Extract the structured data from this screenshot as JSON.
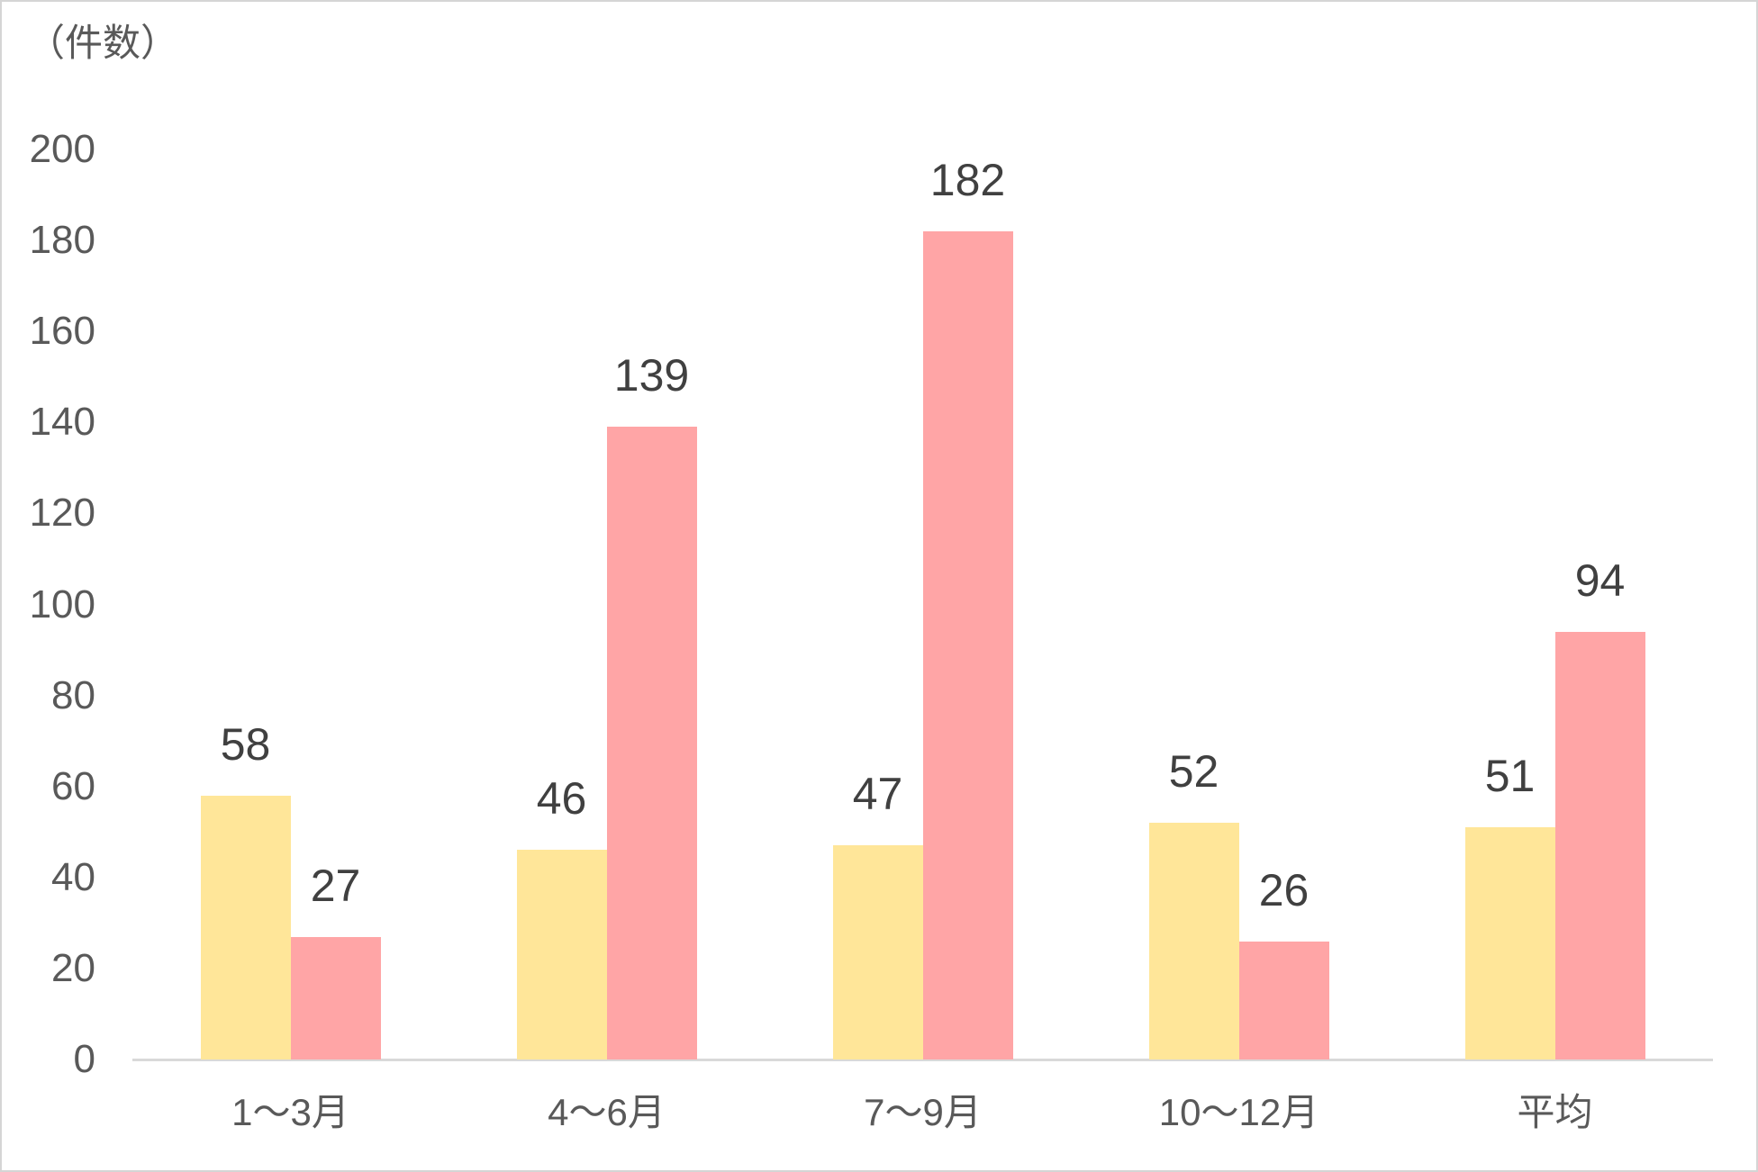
{
  "unit_label": "（件数）",
  "colors": {
    "series1": "#FFE699",
    "series2": "#FFA5A6",
    "axis_line": "#D9D9D9",
    "tick_text": "#595959",
    "data_label_text": "#404040",
    "border": "#D5D5D5",
    "background": "#FFFFFF"
  },
  "chart_data": {
    "type": "bar",
    "title": "",
    "ylabel": "（件数）",
    "xlabel": "",
    "categories": [
      "1〜3月",
      "4〜6月",
      "7〜9月",
      "10〜12月",
      "平均"
    ],
    "series": [
      {
        "id": "series1",
        "color": "#FFE699",
        "values": [
          58,
          46,
          47,
          52,
          51
        ]
      },
      {
        "id": "series2",
        "color": "#FFA5A6",
        "values": [
          27,
          139,
          182,
          26,
          94
        ]
      }
    ],
    "data_labels": [
      [
        "58",
        "46",
        "47",
        "52",
        "51"
      ],
      [
        "27",
        "139",
        "182",
        "26",
        "94"
      ]
    ],
    "ylim": [
      0,
      200
    ],
    "yticks": [
      0,
      20,
      40,
      60,
      80,
      100,
      120,
      140,
      160,
      180,
      200
    ],
    "grid": false,
    "legend_position": "none",
    "data_label_position": "outside-end"
  }
}
